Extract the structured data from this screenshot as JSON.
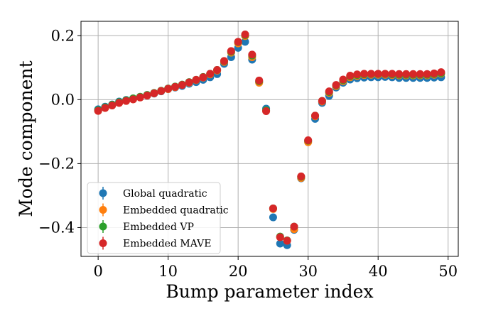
{
  "chart_data": {
    "type": "scatter",
    "xlabel": "Bump parameter index",
    "ylabel": "Mode component",
    "xlim": [
      -2.45,
      51.45
    ],
    "ylim": [
      -0.49,
      0.245
    ],
    "grid": true,
    "legend_placement": "lower-left",
    "x_ticks": [
      0,
      10,
      20,
      30,
      40,
      50
    ],
    "x_tick_labels": [
      "0",
      "10",
      "20",
      "30",
      "40",
      "50"
    ],
    "y_ticks": [
      0.2,
      0.0,
      -0.2,
      -0.4
    ],
    "y_tick_labels": [
      "0.2",
      "0.0",
      "−0.2",
      "−0.4"
    ],
    "x": [
      0,
      1,
      2,
      3,
      4,
      5,
      6,
      7,
      8,
      9,
      10,
      11,
      12,
      13,
      14,
      15,
      16,
      17,
      18,
      19,
      20,
      21,
      22,
      23,
      24,
      25,
      26,
      27,
      28,
      29,
      30,
      31,
      32,
      33,
      34,
      35,
      36,
      37,
      38,
      39,
      40,
      41,
      42,
      43,
      44,
      45,
      46,
      47,
      48,
      49
    ],
    "series": [
      {
        "name": "Global quadratic",
        "color": "#1f77b4",
        "values": [
          -0.03,
          -0.022,
          -0.015,
          -0.006,
          -0.001,
          0.003,
          0.008,
          0.013,
          0.019,
          0.026,
          0.033,
          0.038,
          0.043,
          0.05,
          0.055,
          0.062,
          0.07,
          0.08,
          0.112,
          0.133,
          0.162,
          0.181,
          0.125,
          0.055,
          -0.028,
          -0.368,
          -0.45,
          -0.455,
          -0.407,
          -0.246,
          -0.131,
          -0.06,
          -0.01,
          0.012,
          0.038,
          0.053,
          0.063,
          0.067,
          0.069,
          0.07,
          0.07,
          0.071,
          0.07,
          0.068,
          0.068,
          0.068,
          0.068,
          0.068,
          0.069,
          0.07
        ]
      },
      {
        "name": "Embedded quadratic",
        "color": "#ff7f0e",
        "values": [
          -0.035,
          -0.026,
          -0.018,
          -0.01,
          -0.004,
          0.001,
          0.007,
          0.013,
          0.02,
          0.027,
          0.033,
          0.039,
          0.046,
          0.053,
          0.061,
          0.069,
          0.079,
          0.091,
          0.118,
          0.147,
          0.176,
          0.199,
          0.133,
          0.053,
          -0.035,
          -0.342,
          -0.43,
          -0.441,
          -0.405,
          -0.245,
          -0.133,
          -0.052,
          -0.006,
          0.021,
          0.042,
          0.058,
          0.07,
          0.074,
          0.077,
          0.078,
          0.078,
          0.078,
          0.077,
          0.076,
          0.076,
          0.076,
          0.076,
          0.076,
          0.078,
          0.081
        ]
      },
      {
        "name": "Embedded VP",
        "color": "#2ca02c",
        "values": [
          -0.033,
          -0.024,
          -0.016,
          -0.008,
          -0.002,
          0.004,
          0.009,
          0.015,
          0.021,
          0.028,
          0.035,
          0.041,
          0.047,
          0.055,
          0.062,
          0.071,
          0.081,
          0.093,
          0.12,
          0.15,
          0.18,
          0.202,
          0.138,
          0.058,
          -0.033,
          -0.34,
          -0.428,
          -0.44,
          -0.397,
          -0.241,
          -0.128,
          -0.05,
          -0.004,
          0.024,
          0.045,
          0.061,
          0.073,
          0.077,
          0.079,
          0.08,
          0.08,
          0.08,
          0.079,
          0.078,
          0.078,
          0.078,
          0.078,
          0.078,
          0.08,
          0.083
        ]
      },
      {
        "name": "Embedded MAVE",
        "color": "#d62728",
        "values": [
          -0.035,
          -0.026,
          -0.018,
          -0.01,
          -0.004,
          0.001,
          0.007,
          0.013,
          0.02,
          0.027,
          0.034,
          0.04,
          0.046,
          0.054,
          0.062,
          0.07,
          0.081,
          0.093,
          0.121,
          0.152,
          0.181,
          0.204,
          0.141,
          0.06,
          -0.036,
          -0.34,
          -0.43,
          -0.441,
          -0.397,
          -0.24,
          -0.127,
          -0.05,
          -0.004,
          0.026,
          0.046,
          0.063,
          0.075,
          0.079,
          0.081,
          0.081,
          0.081,
          0.081,
          0.081,
          0.08,
          0.08,
          0.08,
          0.08,
          0.08,
          0.082,
          0.086
        ]
      }
    ]
  }
}
